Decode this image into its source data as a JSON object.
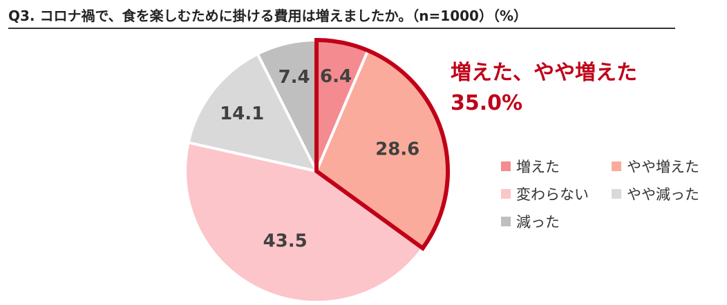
{
  "title": "Q3. コロナ禍で、食を楽しむために掛ける費用は増えましたか。（n=1000）（%）",
  "callout": {
    "label": "増えた、やや増えた",
    "value": "35.0%"
  },
  "colors": {
    "highlight_border": "#c00018",
    "slice_border": "#ffffff"
  },
  "chart_data": {
    "type": "pie",
    "title": "Q3. コロナ禍で、食を楽しむために掛ける費用は増えましたか。（n=1000）（%）",
    "unit": "%",
    "slices": [
      {
        "label": "増えた",
        "value": 6.4,
        "color": "#f48b90"
      },
      {
        "label": "やや増えた",
        "value": 28.6,
        "color": "#fbab9c"
      },
      {
        "label": "変わらない",
        "value": 43.5,
        "color": "#fcc5c9"
      },
      {
        "label": "やや減った",
        "value": 14.1,
        "color": "#d9d9d9"
      },
      {
        "label": "減った",
        "value": 7.4,
        "color": "#bfbfbf"
      }
    ],
    "highlighted": [
      "増えた",
      "やや増えた"
    ],
    "legend_position": "right"
  }
}
